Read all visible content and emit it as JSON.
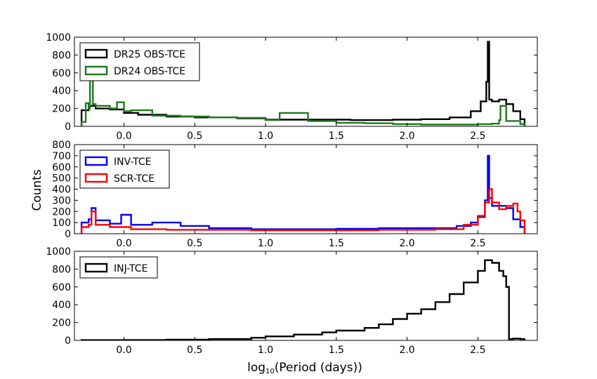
{
  "figure": {
    "ylabel": "Counts",
    "xlabel_prefix": "log",
    "xlabel_sub": "10",
    "xlabel_suffix": "(Period (days))"
  },
  "chart_data": [
    {
      "type": "histogram",
      "xlim": [
        -0.35,
        2.92
      ],
      "ylim": [
        0,
        1000
      ],
      "xticks": [
        0.0,
        0.5,
        1.0,
        1.5,
        2.0,
        2.5
      ],
      "xtick_labels": [
        "0.0",
        "0.5",
        "1.0",
        "1.5",
        "2.0",
        "2.5"
      ],
      "yticks": [
        0,
        200,
        400,
        600,
        800,
        1000
      ],
      "ytick_labels": [
        "0",
        "200",
        "400",
        "600",
        "800",
        "1000"
      ],
      "legend_position": "upper-left",
      "series": [
        {
          "name": "DR25 OBS-TCE",
          "color": "#000000",
          "x": [
            -0.3,
            -0.25,
            -0.2,
            -0.1,
            0.0,
            0.1,
            0.3,
            0.5,
            0.8,
            1.0,
            1.3,
            1.6,
            1.9,
            2.1,
            2.3,
            2.45,
            2.52,
            2.56,
            2.57,
            2.58,
            2.6,
            2.65,
            2.7,
            2.75,
            2.8,
            2.83
          ],
          "y": [
            180,
            230,
            200,
            190,
            150,
            130,
            110,
            100,
            90,
            75,
            75,
            70,
            75,
            80,
            100,
            170,
            280,
            500,
            950,
            300,
            280,
            300,
            250,
            170,
            80,
            0
          ]
        },
        {
          "name": "DR24 OBS-TCE",
          "color": "#1f7a1f",
          "x": [
            -0.3,
            -0.27,
            -0.25,
            -0.24,
            -0.22,
            -0.2,
            -0.1,
            -0.05,
            0.0,
            0.05,
            0.2,
            0.4,
            0.6,
            0.8,
            1.0,
            1.1,
            1.3,
            1.5,
            1.7,
            1.9,
            2.1,
            2.3,
            2.5,
            2.6,
            2.65,
            2.66,
            2.7,
            2.8,
            2.83
          ],
          "y": [
            50,
            260,
            200,
            530,
            250,
            230,
            200,
            270,
            170,
            180,
            120,
            110,
            100,
            95,
            70,
            150,
            60,
            40,
            35,
            25,
            20,
            20,
            25,
            30,
            70,
            230,
            60,
            25,
            0
          ]
        }
      ]
    },
    {
      "type": "histogram",
      "xlim": [
        -0.35,
        2.92
      ],
      "ylim": [
        0,
        800
      ],
      "xticks": [
        0.0,
        0.5,
        1.0,
        1.5,
        2.0,
        2.5
      ],
      "xtick_labels": [
        "0.0",
        "0.5",
        "1.0",
        "1.5",
        "2.0",
        "2.5"
      ],
      "yticks": [
        0,
        100,
        200,
        300,
        400,
        500,
        600,
        700,
        800
      ],
      "ytick_labels": [
        "0",
        "100",
        "200",
        "300",
        "400",
        "500",
        "600",
        "700",
        "800"
      ],
      "legend_position": "upper-left",
      "series": [
        {
          "name": "INV-TCE",
          "color": "#0000ff",
          "x": [
            -0.3,
            -0.25,
            -0.23,
            -0.2,
            -0.1,
            -0.02,
            0.05,
            0.2,
            0.4,
            0.6,
            0.9,
            1.2,
            1.5,
            1.8,
            2.0,
            2.2,
            2.35,
            2.45,
            2.5,
            2.55,
            2.57,
            2.58,
            2.6,
            2.7,
            2.75,
            2.8,
            2.83
          ],
          "y": [
            100,
            130,
            230,
            120,
            90,
            170,
            80,
            100,
            70,
            50,
            40,
            40,
            45,
            50,
            50,
            50,
            70,
            100,
            150,
            300,
            700,
            320,
            250,
            230,
            130,
            60,
            0
          ]
        },
        {
          "name": "SCR-TCE",
          "color": "#ff0000",
          "x": [
            -0.3,
            -0.25,
            -0.23,
            -0.2,
            -0.1,
            0.05,
            0.3,
            0.6,
            0.9,
            1.2,
            1.5,
            1.8,
            2.0,
            2.2,
            2.4,
            2.5,
            2.55,
            2.58,
            2.6,
            2.65,
            2.7,
            2.75,
            2.78,
            2.8,
            2.83
          ],
          "y": [
            60,
            80,
            200,
            80,
            60,
            40,
            35,
            35,
            30,
            30,
            30,
            35,
            35,
            40,
            80,
            160,
            280,
            400,
            280,
            220,
            250,
            270,
            200,
            120,
            0
          ]
        }
      ]
    },
    {
      "type": "histogram",
      "xlim": [
        -0.35,
        2.92
      ],
      "ylim": [
        0,
        1000
      ],
      "xticks": [
        0.0,
        0.5,
        1.0,
        1.5,
        2.0,
        2.5
      ],
      "xtick_labels": [
        "0.0",
        "0.5",
        "1.0",
        "1.5",
        "2.0",
        "2.5"
      ],
      "yticks": [
        0,
        200,
        400,
        600,
        800,
        1000
      ],
      "ytick_labels": [
        "0",
        "200",
        "400",
        "600",
        "800",
        "1000"
      ],
      "legend_position": "upper-left",
      "series": [
        {
          "name": "INJ-TCE",
          "color": "#000000",
          "x": [
            -0.3,
            0.0,
            0.3,
            0.6,
            0.9,
            1.0,
            1.2,
            1.4,
            1.5,
            1.7,
            1.8,
            1.9,
            2.0,
            2.1,
            2.2,
            2.3,
            2.4,
            2.5,
            2.55,
            2.6,
            2.65,
            2.68,
            2.7,
            2.72,
            2.75,
            2.8,
            2.83
          ],
          "y": [
            3,
            5,
            8,
            15,
            30,
            45,
            65,
            90,
            110,
            140,
            180,
            240,
            300,
            350,
            430,
            520,
            650,
            780,
            900,
            870,
            780,
            720,
            600,
            15,
            20,
            15,
            0
          ]
        }
      ]
    }
  ]
}
